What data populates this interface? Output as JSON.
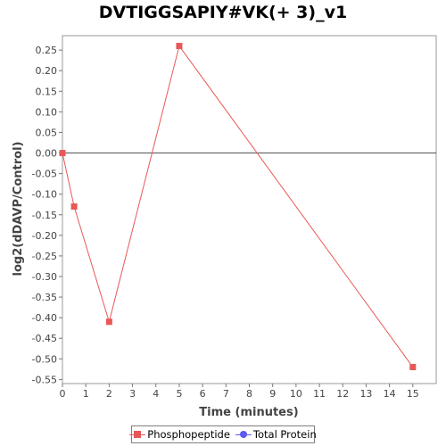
{
  "chart_data": {
    "type": "line",
    "title": "DVTIGGSAPIY#VK(+ 3)_v1",
    "xlabel": "Time (minutes)",
    "ylabel": "log2(dDAVP/Control)",
    "xlim": [
      0,
      16
    ],
    "ylim": [
      -0.56,
      0.285
    ],
    "x_ticks": [
      0,
      1,
      2,
      3,
      4,
      5,
      6,
      7,
      8,
      9,
      10,
      11,
      12,
      13,
      14,
      15
    ],
    "y_ticks": [
      0.25,
      0.2,
      0.15,
      0.1,
      0.05,
      0.0,
      -0.05,
      -0.1,
      -0.15,
      -0.2,
      -0.25,
      -0.3,
      -0.35,
      -0.4,
      -0.45,
      -0.5,
      -0.55
    ],
    "y_tick_labels": [
      "0.25",
      "0.20",
      "0.15",
      "0.10",
      "0.05",
      "0.00",
      "-0.05",
      "-0.10",
      "-0.15",
      "-0.20",
      "-0.25",
      "-0.30",
      "-0.35",
      "-0.40",
      "-0.45",
      "-0.50",
      "-0.55"
    ],
    "zero_line": 0,
    "grid": false,
    "legend_position": "bottom",
    "series": [
      {
        "name": "Phosphopeptide",
        "color": "#e85858",
        "marker": "square",
        "points": [
          {
            "x": 0,
            "y": 0.0
          },
          {
            "x": 0.5,
            "y": -0.13
          },
          {
            "x": 2,
            "y": -0.41
          },
          {
            "x": 5,
            "y": 0.26
          },
          {
            "x": 15,
            "y": -0.52
          }
        ]
      },
      {
        "name": "Total Protein",
        "color": "#5b5bf0",
        "marker": "circle",
        "points": []
      }
    ]
  }
}
